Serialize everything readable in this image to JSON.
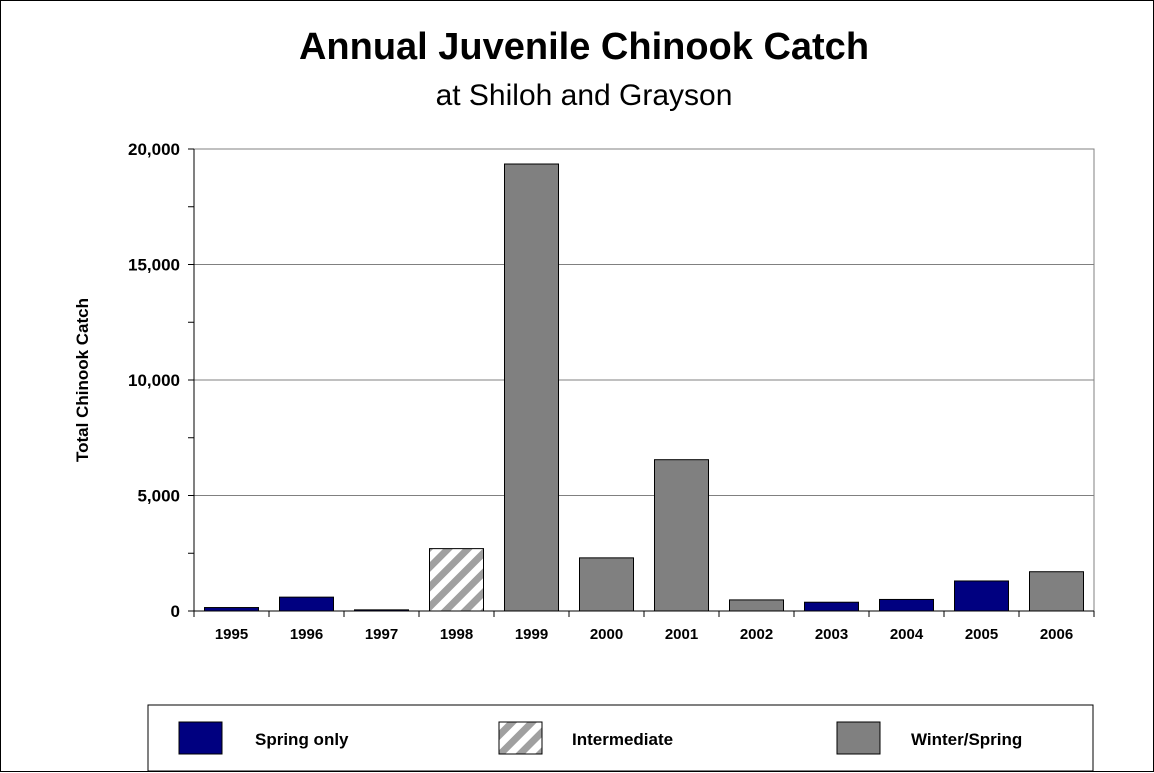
{
  "chart_data": {
    "type": "bar",
    "title": "Annual Juvenile Chinook Catch",
    "subtitle": "at Shiloh and Grayson",
    "xlabel": "",
    "ylabel": "Total Chinook Catch",
    "ylim": [
      0,
      20000
    ],
    "yticks": [
      0,
      5000,
      10000,
      15000,
      20000
    ],
    "ytick_labels": [
      "0",
      "5,000",
      "10,000",
      "15,000",
      "20,000"
    ],
    "grid": true,
    "legend_position": "bottom",
    "categories": [
      "1995",
      "1996",
      "1997",
      "1998",
      "1999",
      "2000",
      "2001",
      "2002",
      "2003",
      "2004",
      "2005",
      "2006"
    ],
    "values": [
      150,
      600,
      50,
      2700,
      19350,
      2300,
      6550,
      480,
      380,
      500,
      1300,
      1700
    ],
    "bar_series": [
      "Spring only",
      "Spring only",
      "Spring only",
      "Intermediate",
      "Winter/Spring",
      "Winter/Spring",
      "Winter/Spring",
      "Winter/Spring",
      "Spring only",
      "Spring only",
      "Spring only",
      "Winter/Spring"
    ],
    "series": [
      {
        "name": "Spring only",
        "color": "#000080",
        "pattern": "solid"
      },
      {
        "name": "Intermediate",
        "color": "#a0a0a0",
        "pattern": "diagonal-stripes"
      },
      {
        "name": "Winter/Spring",
        "color": "#808080",
        "pattern": "solid"
      }
    ]
  }
}
